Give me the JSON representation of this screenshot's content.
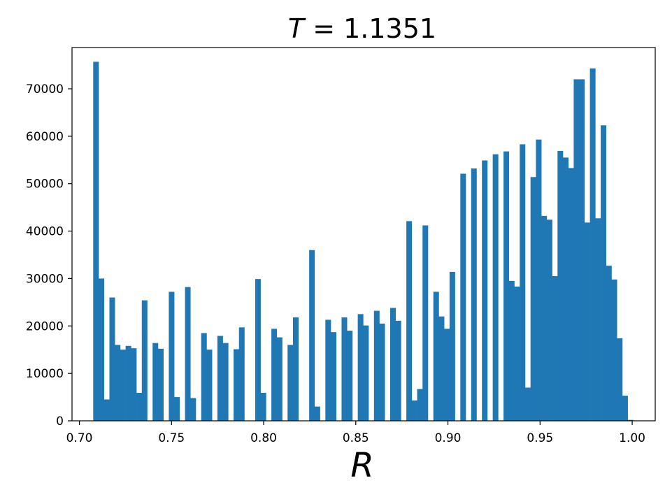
{
  "chart_data": {
    "type": "bar",
    "title": "T = 1.1351",
    "title_parts": {
      "var": "T",
      "eq": " = ",
      "value": "1.1351"
    },
    "xlabel": "R",
    "ylabel": "",
    "xlim": [
      0.696,
      1.0125
    ],
    "ylim": [
      0,
      78700
    ],
    "bin_start": 0.7075,
    "bin_width": 0.00293,
    "color": "#1f77b4",
    "x_ticks": [
      0.7,
      0.75,
      0.8,
      0.85,
      0.9,
      0.95,
      1.0
    ],
    "x_tick_labels": [
      "0.70",
      "0.75",
      "0.80",
      "0.85",
      "0.90",
      "0.95",
      "1.00"
    ],
    "y_ticks": [
      0,
      10000,
      20000,
      30000,
      40000,
      50000,
      60000,
      70000
    ],
    "y_tick_labels": [
      "0",
      "10000",
      "20000",
      "30000",
      "40000",
      "50000",
      "60000",
      "70000"
    ],
    "values": [
      75700,
      30000,
      4500,
      26000,
      16000,
      15000,
      15800,
      15300,
      5900,
      25400,
      0,
      16400,
      15200,
      0,
      27200,
      5000,
      0,
      28200,
      4800,
      0,
      18500,
      15000,
      0,
      17900,
      16400,
      0,
      15100,
      19700,
      0,
      0,
      29900,
      5900,
      0,
      19400,
      17600,
      0,
      16000,
      21800,
      0,
      0,
      36000,
      3000,
      0,
      21300,
      18700,
      0,
      21800,
      19000,
      0,
      22500,
      20100,
      0,
      23200,
      20500,
      0,
      23800,
      21100,
      0,
      42100,
      4300,
      6700,
      41200,
      0,
      27200,
      22000,
      19400,
      31400,
      0,
      52100,
      0,
      53200,
      0,
      54900,
      0,
      56200,
      0,
      56800,
      29500,
      28300,
      58300,
      7000,
      51400,
      59300,
      43200,
      42400,
      30500,
      56900,
      55500,
      53300,
      72000,
      72000,
      41800,
      74300,
      42700,
      62300,
      32700,
      29800,
      17400,
      5300,
      200
    ]
  }
}
